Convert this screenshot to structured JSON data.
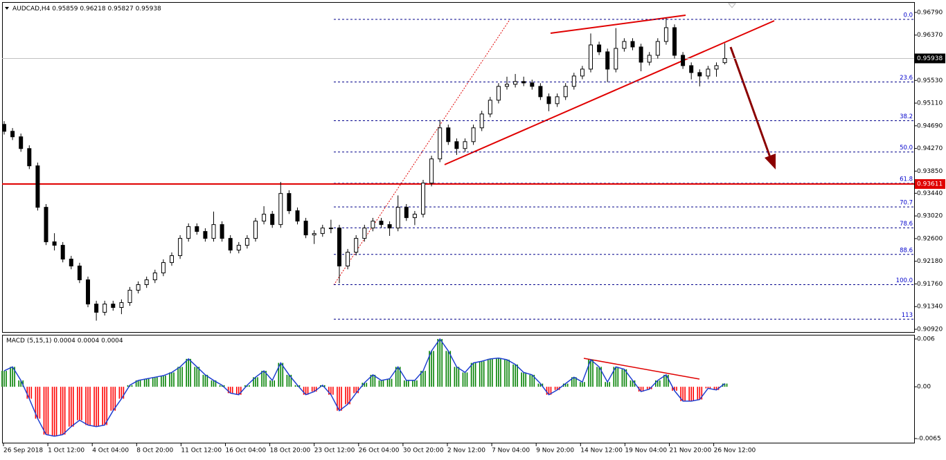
{
  "chart_data": [
    {
      "type": "candlestick",
      "title": "AUDCAD,H4",
      "title_values": [
        0.95859,
        0.96218,
        0.95827,
        0.95938
      ],
      "open": [
        0.94716,
        0.94588,
        0.94486,
        0.94268,
        0.93948,
        0.9318,
        0.9254,
        0.92476,
        0.9222,
        0.92092,
        0.91836,
        0.91388,
        0.91235,
        0.91388,
        0.91324,
        0.91414,
        0.91644,
        0.91747,
        0.91836,
        0.91964,
        0.92156,
        0.92284,
        0.92604,
        0.92822,
        0.92732,
        0.92604,
        0.9286,
        0.92604,
        0.92387,
        0.92476,
        0.92604,
        0.92924,
        0.93052,
        0.9286,
        0.93436,
        0.93116,
        0.92924,
        0.92668,
        0.92694,
        0.92796,
        0.92796,
        0.92092,
        0.92348,
        0.92604,
        0.92796,
        0.92924,
        0.9286,
        0.92796,
        0.9318,
        0.92988,
        0.93052,
        0.93628,
        0.94076,
        0.94652,
        0.94396,
        0.94268,
        0.94396,
        0.94652,
        0.94908,
        0.95164,
        0.9542,
        0.95459,
        0.9551,
        0.95484,
        0.9542,
        0.95228,
        0.951,
        0.95228,
        0.9542,
        0.95612,
        0.9574,
        0.96188,
        0.9606,
        0.9574,
        0.96124,
        0.96252,
        0.9615,
        0.95868,
        0.95996,
        0.96252,
        0.96508,
        0.95996,
        0.95804,
        0.95676,
        0.95612,
        0.9574,
        0.95859
      ],
      "high": [
        0.94776,
        0.94648,
        0.94546,
        0.94328,
        0.94008,
        0.9324,
        0.927,
        0.92536,
        0.9228,
        0.92152,
        0.91896,
        0.91448,
        0.91448,
        0.91448,
        0.91474,
        0.91704,
        0.91807,
        0.91896,
        0.92024,
        0.92216,
        0.92344,
        0.92664,
        0.92882,
        0.92882,
        0.92792,
        0.931,
        0.9292,
        0.92664,
        0.92536,
        0.92664,
        0.92984,
        0.932,
        0.93112,
        0.9365,
        0.93496,
        0.93176,
        0.92984,
        0.92754,
        0.92856,
        0.9295,
        0.92856,
        0.92408,
        0.92664,
        0.92856,
        0.92984,
        0.92984,
        0.9292,
        0.934,
        0.9324,
        0.93112,
        0.93688,
        0.94136,
        0.948,
        0.94712,
        0.94456,
        0.94456,
        0.94712,
        0.94968,
        0.95224,
        0.9548,
        0.956,
        0.9565,
        0.956,
        0.95544,
        0.9548,
        0.95288,
        0.95288,
        0.9548,
        0.95672,
        0.958,
        0.964,
        0.96248,
        0.9612,
        0.965,
        0.96312,
        0.96312,
        0.9621,
        0.96056,
        0.96312,
        0.9669,
        0.96568,
        0.96056,
        0.95864,
        0.95736,
        0.958,
        0.95864,
        0.96218
      ],
      "low": [
        0.94528,
        0.94426,
        0.94208,
        0.93888,
        0.9312,
        0.9248,
        0.9238,
        0.9216,
        0.92032,
        0.91776,
        0.91328,
        0.9108,
        0.91175,
        0.91264,
        0.912,
        0.91354,
        0.91584,
        0.91687,
        0.91776,
        0.91904,
        0.92096,
        0.92224,
        0.92544,
        0.92672,
        0.92544,
        0.92544,
        0.92544,
        0.92327,
        0.92327,
        0.92416,
        0.92544,
        0.92864,
        0.928,
        0.928,
        0.93056,
        0.92864,
        0.92608,
        0.925,
        0.92634,
        0.927,
        0.91772,
        0.92032,
        0.92288,
        0.92544,
        0.92736,
        0.928,
        0.9265,
        0.92736,
        0.92928,
        0.9285,
        0.92992,
        0.93568,
        0.94016,
        0.94336,
        0.9415,
        0.94208,
        0.94336,
        0.94592,
        0.94848,
        0.95104,
        0.9536,
        0.95399,
        0.95424,
        0.9536,
        0.95168,
        0.9496,
        0.9504,
        0.95168,
        0.9536,
        0.95552,
        0.9568,
        0.96,
        0.955,
        0.9568,
        0.96064,
        0.9609,
        0.957,
        0.95808,
        0.95936,
        0.96192,
        0.95936,
        0.95744,
        0.9555,
        0.9542,
        0.95552,
        0.956,
        0.95827
      ],
      "close": [
        0.94588,
        0.94486,
        0.94268,
        0.93948,
        0.9318,
        0.9254,
        0.92476,
        0.9222,
        0.92092,
        0.91836,
        0.91388,
        0.91235,
        0.91388,
        0.91324,
        0.91414,
        0.91644,
        0.91747,
        0.91836,
        0.91964,
        0.92156,
        0.92284,
        0.92604,
        0.92822,
        0.92732,
        0.92604,
        0.9286,
        0.92604,
        0.92387,
        0.92476,
        0.92604,
        0.92924,
        0.93052,
        0.9286,
        0.93436,
        0.93116,
        0.92924,
        0.92668,
        0.92694,
        0.92796,
        0.92796,
        0.92092,
        0.92348,
        0.92604,
        0.92796,
        0.92924,
        0.9286,
        0.92796,
        0.9318,
        0.92988,
        0.93052,
        0.93628,
        0.94076,
        0.94652,
        0.94396,
        0.94268,
        0.94396,
        0.94652,
        0.94908,
        0.95164,
        0.9542,
        0.95459,
        0.9551,
        0.95484,
        0.9542,
        0.95228,
        0.951,
        0.95228,
        0.9542,
        0.95612,
        0.9574,
        0.96188,
        0.9606,
        0.9574,
        0.96124,
        0.96252,
        0.9615,
        0.95868,
        0.95996,
        0.96252,
        0.96508,
        0.95996,
        0.95804,
        0.95676,
        0.95612,
        0.9574,
        0.95804,
        0.95938
      ],
      "up_color": "#ffffff",
      "down_color": "#000000",
      "ylim": [
        0.90869,
        0.96969
      ],
      "yticks": [
        {
          "value": 0.9679,
          "label": "0.96790"
        },
        {
          "value": 0.9637,
          "label": "0.96370"
        },
        {
          "value": 0.9553,
          "label": "0.95530"
        },
        {
          "value": 0.9511,
          "label": "0.95110"
        },
        {
          "value": 0.9469,
          "label": "0.94690"
        },
        {
          "value": 0.9427,
          "label": "0.94270"
        },
        {
          "value": 0.9385,
          "label": "0.93850"
        },
        {
          "value": 0.9344,
          "label": "0.93440"
        },
        {
          "value": 0.9302,
          "label": "0.93020"
        },
        {
          "value": 0.926,
          "label": "0.92600"
        },
        {
          "value": 0.9218,
          "label": "0.92180"
        },
        {
          "value": 0.9176,
          "label": "0.91760"
        },
        {
          "value": 0.9134,
          "label": "0.91340"
        },
        {
          "value": 0.9092,
          "label": "0.90920"
        }
      ],
      "current_price": 0.95938,
      "level": 0.93611,
      "level_color": "#e00000",
      "fib_high": 0.96662,
      "fib_low": 0.91747,
      "fib_color": "#00008b",
      "fib_levels": [
        {
          "value": 0,
          "label": "0.0"
        },
        23.6,
        38.2,
        {
          "value": 50,
          "label": "50.0"
        },
        61.8,
        70.7,
        78.6,
        88.6,
        {
          "value": 100,
          "label": "100.0"
        },
        113
      ],
      "x_labels": [
        "26 Sep 2018",
        "1 Oct 12:00",
        "4 Oct 04:00",
        "8 Oct 20:00",
        "11 Oct 12:00",
        "16 Oct 04:00",
        "18 Oct 20:00",
        "23 Oct 12:00",
        "26 Oct 04:00",
        "30 Oct 20:00",
        "2 Nov 12:00",
        "7 Nov 04:00",
        "9 Nov 20:00",
        "14 Nov 12:00",
        "19 Nov 04:00",
        "21 Nov 20:00",
        "26 Nov 12:00"
      ]
    },
    {
      "type": "histogram",
      "title": "MACD (5,15,1)",
      "title_values": [
        0.0004,
        0.0004,
        0.0004
      ],
      "values": [
        0.002,
        0.0025,
        0.0008,
        -0.0015,
        -0.004,
        -0.006,
        -0.0062,
        -0.006,
        -0.005,
        -0.0042,
        -0.0048,
        -0.005,
        -0.0048,
        -0.003,
        -0.0015,
        0.0002,
        0.0008,
        0.001,
        0.0012,
        0.0014,
        0.0018,
        0.0025,
        0.0035,
        0.0025,
        0.0015,
        0.0008,
        0.0002,
        -0.0008,
        -0.001,
        0.0002,
        0.0012,
        0.002,
        0.0008,
        0.003,
        0.0015,
        0.0002,
        -0.001,
        -0.0006,
        0.0002,
        -0.001,
        -0.003,
        -0.0022,
        -0.0008,
        0.0005,
        0.0015,
        0.0008,
        0.001,
        0.0025,
        0.0008,
        0.0008,
        0.002,
        0.0045,
        0.006,
        0.0045,
        0.0025,
        0.0018,
        0.003,
        0.0032,
        0.0035,
        0.0036,
        0.0034,
        0.0028,
        0.0018,
        0.0015,
        0.0004,
        -0.001,
        -0.0004,
        0.0004,
        0.0012,
        0.0006,
        0.0034,
        0.0025,
        0.0006,
        0.0025,
        0.0022,
        0.0008,
        -0.0006,
        -0.0003,
        0.0008,
        0.0015,
        -0.0005,
        -0.0018,
        -0.0018,
        -0.0016,
        -0.0002,
        -0.0004,
        0.0004
      ],
      "positive_color": "#008000",
      "negative_color": "#ff0000",
      "line_color": "#1f3fd0",
      "ylim": [
        -0.00702,
        0.00635
      ],
      "yticks": [
        0.006,
        {
          "value": 0,
          "label": "0.00"
        },
        -0.0065
      ]
    }
  ]
}
